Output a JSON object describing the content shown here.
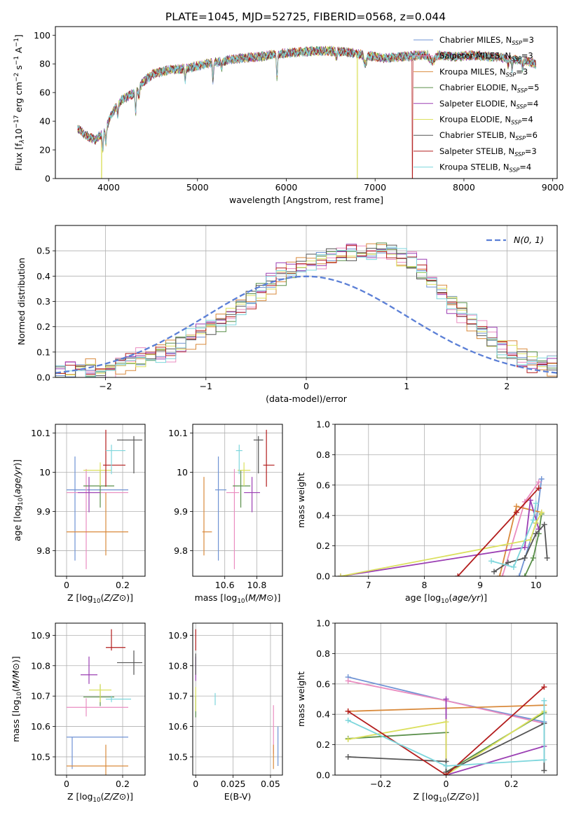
{
  "figure": {
    "title": "PLATE=1045, MJD=52725, FIBERID=0568, z=0.044"
  },
  "colors": {
    "models": [
      "#6f93d4",
      "#ea8cc0",
      "#d98a3c",
      "#5a8f4a",
      "#9b3fb3",
      "#dbe05e",
      "#555555",
      "#b31d1d",
      "#7dd6dc"
    ],
    "normal_curve": "#5b7fd6",
    "grid": "#b0b0b0"
  },
  "models": [
    {
      "name": "Chabrier MILES, N",
      "sub": "SSP",
      "tail": "=3",
      "color": "#6f93d4"
    },
    {
      "name": "Salpeter MILES, N",
      "sub": "SSP",
      "tail": "=3",
      "color": "#ea8cc0"
    },
    {
      "name": "Kroupa MILES, N",
      "sub": "SSP",
      "tail": "=3",
      "color": "#d98a3c"
    },
    {
      "name": "Chabrier ELODIE, N",
      "sub": "SSP",
      "tail": "=5",
      "color": "#5a8f4a"
    },
    {
      "name": "Salpeter ELODIE, N",
      "sub": "SSP",
      "tail": "=4",
      "color": "#9b3fb3"
    },
    {
      "name": "Kroupa ELODIE, N",
      "sub": "SSP",
      "tail": "=4",
      "color": "#dbe05e"
    },
    {
      "name": "Chabrier STELIB, N",
      "sub": "SSP",
      "tail": "=6",
      "color": "#555555"
    },
    {
      "name": "Salpeter STELIB, N",
      "sub": "SSP",
      "tail": "=3",
      "color": "#b31d1d"
    },
    {
      "name": "Kroupa STELIB, N",
      "sub": "SSP",
      "tail": "=4",
      "color": "#7dd6dc"
    }
  ],
  "chart_data": [
    {
      "id": "spectrum",
      "type": "line",
      "xlabel": "wavelength [Angstrom, rest frame]",
      "ylabel_parts": [
        "Flux [f",
        "λ",
        "10",
        "−17",
        " erg cm",
        "−2",
        " s",
        "−1",
        " A",
        "−1",
        "]"
      ],
      "xlim": [
        3400,
        9050
      ],
      "ylim": [
        0,
        106
      ],
      "xticks": [
        4000,
        5000,
        6000,
        7000,
        8000,
        9000
      ],
      "yticks": [
        0,
        20,
        40,
        60,
        80,
        100
      ],
      "continuum": {
        "x": [
          3650,
          3750,
          3850,
          3950,
          4050,
          4150,
          4300,
          4400,
          4500,
          4700,
          4900,
          5100,
          5300,
          5500,
          5700,
          5900,
          6100,
          6300,
          6500,
          6700,
          6900,
          7100,
          7300,
          7500,
          7700,
          7900,
          8100,
          8300,
          8500,
          8700,
          8810
        ],
        "y": [
          35,
          30,
          27,
          33,
          47,
          55,
          60,
          68,
          73,
          76,
          77,
          80,
          82,
          84,
          85,
          87,
          88,
          89,
          89,
          88,
          86,
          84,
          85,
          86,
          86,
          85,
          86,
          85,
          84,
          82,
          80
        ]
      },
      "absorption_lines": [
        {
          "x": 3934,
          "depth": 12
        },
        {
          "x": 3969,
          "depth": 10
        },
        {
          "x": 4102,
          "depth": 7
        },
        {
          "x": 4304,
          "depth": 14
        },
        {
          "x": 4341,
          "depth": 6
        },
        {
          "x": 4861,
          "depth": 8
        },
        {
          "x": 5175,
          "depth": 12
        },
        {
          "x": 5270,
          "depth": 5
        },
        {
          "x": 5895,
          "depth": 16
        },
        {
          "x": 6563,
          "depth": 5
        },
        {
          "x": 8498,
          "depth": 5
        },
        {
          "x": 8542,
          "depth": 7
        },
        {
          "x": 8662,
          "depth": 6
        }
      ],
      "bands": [
        {
          "x0": 6860,
          "x1": 6920,
          "depth": 6
        },
        {
          "x0": 7590,
          "x1": 7700,
          "depth": 4
        }
      ],
      "dropouts": [
        {
          "model": 5,
          "x": 3920
        },
        {
          "model": 5,
          "x": 6800
        },
        {
          "model": 7,
          "x": 7420
        }
      ]
    },
    {
      "id": "residual_distribution",
      "type": "histogram",
      "xlabel": "(data-model)/error",
      "ylabel": "Normed distribution",
      "xlim": [
        -2.5,
        2.5
      ],
      "ylim": [
        0,
        0.6
      ],
      "xticks": [
        -2,
        -1,
        0,
        1,
        2
      ],
      "yticks": [
        0.0,
        0.1,
        0.2,
        0.3,
        0.4,
        0.5
      ],
      "bin_width": 0.1,
      "bin_start": -2.5,
      "normal_label": "N(0, 1)",
      "histogram_envelope": [
        0.02,
        0.02,
        0.03,
        0.03,
        0.03,
        0.04,
        0.05,
        0.06,
        0.07,
        0.08,
        0.1,
        0.11,
        0.13,
        0.15,
        0.17,
        0.2,
        0.22,
        0.25,
        0.28,
        0.31,
        0.34,
        0.37,
        0.4,
        0.42,
        0.44,
        0.46,
        0.47,
        0.48,
        0.48,
        0.49,
        0.49,
        0.5,
        0.51,
        0.49,
        0.47,
        0.45,
        0.42,
        0.38,
        0.34,
        0.3,
        0.26,
        0.22,
        0.18,
        0.15,
        0.12,
        0.1,
        0.08,
        0.06,
        0.05,
        0.04
      ],
      "series_offsets": [
        0.0,
        0.03,
        -0.02,
        0.02,
        -0.03,
        0.01,
        -0.01,
        0.02,
        0.03
      ]
    },
    {
      "id": "age_vs_Z",
      "type": "errorbar",
      "xlabel": "Z [log10(Z/Z⊙)]",
      "ylabel": "age  [log10(age/yr)]",
      "xlim": [
        -0.04,
        0.28
      ],
      "ylim": [
        9.735,
        10.122
      ],
      "xticks": [
        0.0,
        0.2
      ],
      "yticks": [
        9.8,
        9.9,
        10.0,
        10.1
      ],
      "points": [
        {
          "x": 0.03,
          "xerr": [
            0.03,
            0.19
          ],
          "y": 9.955,
          "yerr": [
            0.18,
            0.085
          ]
        },
        {
          "x": 0.07,
          "xerr": [
            0.07,
            0.15
          ],
          "y": 9.948,
          "yerr": [
            0.195,
            0.06
          ]
        },
        {
          "x": 0.14,
          "xerr": [
            0.14,
            0.08
          ],
          "y": 9.848,
          "yerr": [
            0.06,
            0.1
          ]
        },
        {
          "x": 0.12,
          "xerr": [
            0.06,
            0.05
          ],
          "y": 9.965,
          "yerr": [
            0.055,
            0.04
          ]
        },
        {
          "x": 0.08,
          "xerr": [
            0.04,
            0.04
          ],
          "y": 9.948,
          "yerr": [
            0.05,
            0.04
          ]
        },
        {
          "x": 0.12,
          "xerr": [
            0.06,
            0.04
          ],
          "y": 10.005,
          "yerr": [
            0.04,
            0.02
          ]
        },
        {
          "x": 0.24,
          "xerr": [
            0.06,
            0.03
          ],
          "y": 10.082,
          "yerr": [
            0.085,
            0.01
          ]
        },
        {
          "x": 0.14,
          "xerr": [
            0.01,
            0.07
          ],
          "y": 10.018,
          "yerr": [
            0.055,
            0.09
          ]
        },
        {
          "x": 0.16,
          "xerr": [
            0.02,
            0.05
          ],
          "y": 10.055,
          "yerr": [
            0.06,
            0.015
          ]
        }
      ]
    },
    {
      "id": "age_vs_mass",
      "type": "errorbar",
      "xlabel": "mass [log10(M/M⊙)]",
      "ylabel": "",
      "xlim": [
        10.4,
        10.96
      ],
      "ylim": [
        9.735,
        10.122
      ],
      "xticks": [
        10.6,
        10.8
      ],
      "yticks": [
        9.8,
        9.9,
        10.0,
        10.1
      ],
      "points": [
        {
          "x": 10.56,
          "xerr": [
            0.02,
            0.05
          ],
          "y": 9.955,
          "yerr": [
            0.18,
            0.085
          ]
        },
        {
          "x": 10.66,
          "xerr": [
            0.05,
            0.03
          ],
          "y": 9.948,
          "yerr": [
            0.195,
            0.06
          ]
        },
        {
          "x": 10.47,
          "xerr": [
            0.01,
            0.05
          ],
          "y": 9.848,
          "yerr": [
            0.06,
            0.14
          ]
        },
        {
          "x": 10.7,
          "xerr": [
            0.05,
            0.06
          ],
          "y": 9.965,
          "yerr": [
            0.055,
            0.04
          ]
        },
        {
          "x": 10.77,
          "xerr": [
            0.05,
            0.05
          ],
          "y": 9.948,
          "yerr": [
            0.05,
            0.04
          ]
        },
        {
          "x": 10.72,
          "xerr": [
            0.04,
            0.04
          ],
          "y": 10.005,
          "yerr": [
            0.04,
            0.02
          ]
        },
        {
          "x": 10.81,
          "xerr": [
            0.03,
            0.03
          ],
          "y": 10.082,
          "yerr": [
            0.085,
            0.01
          ]
        },
        {
          "x": 10.86,
          "xerr": [
            0.02,
            0.05
          ],
          "y": 10.018,
          "yerr": [
            0.055,
            0.09
          ]
        },
        {
          "x": 10.69,
          "xerr": [
            0.02,
            0.02
          ],
          "y": 10.055,
          "yerr": [
            0.06,
            0.015
          ]
        }
      ]
    },
    {
      "id": "mass_vs_Z",
      "type": "errorbar",
      "xlabel": "Z [log10(Z/Z⊙)]",
      "ylabel": "mass [log10(M/M⊙)]",
      "xlim": [
        -0.04,
        0.28
      ],
      "ylim": [
        10.44,
        10.94
      ],
      "xticks": [
        0.0,
        0.2
      ],
      "yticks": [
        10.5,
        10.6,
        10.7,
        10.8,
        10.9
      ],
      "points": [
        {
          "x": 0.02,
          "xerr": [
            0.02,
            0.2
          ],
          "y": 10.565,
          "yerr": [
            0.105,
            0.0
          ]
        },
        {
          "x": 0.07,
          "xerr": [
            0.07,
            0.15
          ],
          "y": 10.663,
          "yerr": [
            0.03,
            0.03
          ]
        },
        {
          "x": 0.14,
          "xerr": [
            0.14,
            0.08
          ],
          "y": 10.47,
          "yerr": [
            0.03,
            0.07
          ]
        },
        {
          "x": 0.12,
          "xerr": [
            0.06,
            0.05
          ],
          "y": 10.697,
          "yerr": [
            0.03,
            0.04
          ]
        },
        {
          "x": 0.08,
          "xerr": [
            0.03,
            0.03
          ],
          "y": 10.77,
          "yerr": [
            0.03,
            0.06
          ]
        },
        {
          "x": 0.12,
          "xerr": [
            0.04,
            0.04
          ],
          "y": 10.72,
          "yerr": [
            0.04,
            0.02
          ]
        },
        {
          "x": 0.24,
          "xerr": [
            0.06,
            0.03
          ],
          "y": 10.81,
          "yerr": [
            0.04,
            0.04
          ]
        },
        {
          "x": 0.16,
          "xerr": [
            0.02,
            0.05
          ],
          "y": 10.86,
          "yerr": [
            0.01,
            0.06
          ]
        },
        {
          "x": 0.16,
          "xerr": [
            0.02,
            0.07
          ],
          "y": 10.69,
          "yerr": [
            0.01,
            0.01
          ]
        }
      ]
    },
    {
      "id": "mass_vs_ebv",
      "type": "errorbar",
      "xlabel": "E(B-V)",
      "ylabel": "",
      "xlim": [
        -0.002,
        0.058
      ],
      "ylim": [
        10.44,
        10.94
      ],
      "xticks": [
        0.0,
        0.025,
        0.05
      ],
      "yticks": [
        10.5,
        10.6,
        10.7,
        10.8,
        10.9
      ],
      "points": [
        {
          "x": 0.055,
          "xerr": [
            0.0,
            0.0
          ],
          "y": 10.53,
          "yerr": [
            0.06,
            0.07
          ]
        },
        {
          "x": 0.052,
          "xerr": [
            0.0,
            0.0
          ],
          "y": 10.6,
          "yerr": [
            0.09,
            0.07
          ]
        },
        {
          "x": 0.052,
          "xerr": [
            0.0,
            0.0
          ],
          "y": 10.5,
          "yerr": [
            0.04,
            0.04
          ]
        },
        {
          "x": 0.0,
          "xerr": [
            0.0,
            0.0
          ],
          "y": 10.68,
          "yerr": [
            0.05,
            0.02
          ]
        },
        {
          "x": 0.0,
          "xerr": [
            0.0,
            0.0
          ],
          "y": 10.78,
          "yerr": [
            0.03,
            0.05
          ]
        },
        {
          "x": 0.0,
          "xerr": [
            0.0,
            0.0
          ],
          "y": 10.7,
          "yerr": [
            0.05,
            0.03
          ]
        },
        {
          "x": 0.0,
          "xerr": [
            0.0,
            0.0
          ],
          "y": 10.81,
          "yerr": [
            0.04,
            0.03
          ]
        },
        {
          "x": 0.0,
          "xerr": [
            0.0,
            0.0
          ],
          "y": 10.88,
          "yerr": [
            0.03,
            0.04
          ]
        },
        {
          "x": 0.013,
          "xerr": [
            0.0,
            0.0
          ],
          "y": 10.69,
          "yerr": [
            0.02,
            0.02
          ]
        }
      ]
    },
    {
      "id": "mass_weight_vs_age",
      "type": "line",
      "xlabel": "age  [log10(age/yr)]",
      "ylabel": "mass weight",
      "xlim": [
        6.4,
        10.38
      ],
      "ylim": [
        0.0,
        1.0
      ],
      "xticks": [
        7,
        8,
        9,
        10
      ],
      "yticks": [
        0.0,
        0.2,
        0.4,
        0.6,
        0.8,
        1.0
      ],
      "series": [
        {
          "model": 0,
          "x": [
            9.7,
            10.0,
            10.1
          ],
          "y": [
            0.0,
            0.35,
            0.64
          ]
        },
        {
          "model": 1,
          "x": [
            9.4,
            9.8,
            10.05
          ],
          "y": [
            0.0,
            0.49,
            0.62
          ]
        },
        {
          "model": 2,
          "x": [
            9.35,
            9.65,
            10.1
          ],
          "y": [
            0.0,
            0.46,
            0.42
          ]
        },
        {
          "model": 3,
          "x": [
            9.8,
            9.95,
            10.05,
            10.1
          ],
          "y": [
            0.0,
            0.12,
            0.28,
            0.41
          ]
        },
        {
          "model": 4,
          "x": [
            6.5,
            9.8,
            9.9,
            10.05
          ],
          "y": [
            0.0,
            0.19,
            0.5,
            0.31
          ]
        },
        {
          "model": 5,
          "x": [
            6.5,
            9.9,
            10.0,
            10.1
          ],
          "y": [
            0.0,
            0.24,
            0.35,
            0.42
          ]
        },
        {
          "model": 6,
          "x": [
            9.25,
            9.5,
            9.8,
            10.0,
            10.15,
            10.2
          ],
          "y": [
            0.03,
            0.09,
            0.12,
            0.28,
            0.34,
            0.12
          ]
        },
        {
          "model": 7,
          "x": [
            8.6,
            9.65,
            10.05
          ],
          "y": [
            0.0,
            0.42,
            0.58
          ]
        },
        {
          "model": 8,
          "x": [
            9.2,
            9.6,
            9.95,
            10.0
          ],
          "y": [
            0.1,
            0.06,
            0.37,
            0.48
          ]
        }
      ]
    },
    {
      "id": "mass_weight_vs_Z",
      "type": "line",
      "xlabel": "Z [log10(Z/Z⊙)]",
      "ylabel": "mass weight",
      "xlim": [
        -0.34,
        0.34
      ],
      "ylim": [
        0.0,
        1.0
      ],
      "xticks": [
        -0.2,
        0.0,
        0.2
      ],
      "yticks": [
        0.0,
        0.2,
        0.4,
        0.6,
        0.8,
        1.0
      ],
      "series": [
        {
          "model": 0,
          "x": [
            -0.3,
            0.0,
            0.3
          ],
          "y": [
            0.645,
            0.49,
            0.35
          ]
        },
        {
          "model": 1,
          "x": [
            -0.3,
            0.0,
            0.3
          ],
          "y": [
            0.62,
            0.49,
            0.34
          ]
        },
        {
          "model": 2,
          "x": [
            -0.3,
            0.0,
            0.3
          ],
          "y": [
            0.42,
            0.44,
            0.46
          ]
        },
        {
          "model": 3,
          "x": [
            -0.3,
            0.0,
            0.0,
            0.3
          ],
          "y": [
            0.24,
            0.28,
            0.02,
            0.41
          ]
        },
        {
          "model": 4,
          "x": [
            0.0,
            0.0,
            0.3
          ],
          "y": [
            0.5,
            0.0,
            0.19
          ]
        },
        {
          "model": 5,
          "x": [
            -0.3,
            0.0,
            0.0,
            0.3
          ],
          "y": [
            0.235,
            0.35,
            0.0,
            0.42
          ]
        },
        {
          "model": 6,
          "x": [
            -0.3,
            0.0,
            0.0,
            0.3,
            0.3
          ],
          "y": [
            0.12,
            0.09,
            0.02,
            0.34,
            0.03
          ]
        },
        {
          "model": 7,
          "x": [
            -0.3,
            0.0,
            0.3
          ],
          "y": [
            0.42,
            0.0,
            0.58
          ]
        },
        {
          "model": 8,
          "x": [
            -0.3,
            0.0,
            0.3,
            0.3
          ],
          "y": [
            0.36,
            0.06,
            0.1,
            0.49
          ]
        }
      ]
    }
  ]
}
